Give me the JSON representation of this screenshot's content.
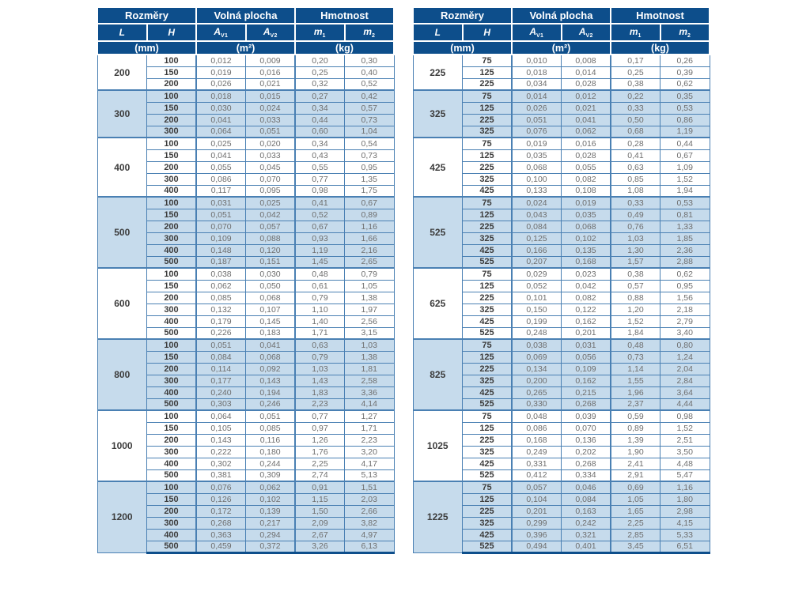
{
  "colors": {
    "header_bg": "#0d4e8b",
    "row_alt": "#c6dbec",
    "border": "#4a80b3",
    "label_text": "#3c3c3c",
    "value_text": "#6e6e6e",
    "header_text": "#ffffff"
  },
  "header": {
    "col_groups": [
      "Rozměry",
      "Volná plocha",
      "Hmotnost"
    ],
    "symbols": [
      {
        "base": "L",
        "sub": ""
      },
      {
        "base": "H",
        "sub": ""
      },
      {
        "base": "A",
        "sub": "V1"
      },
      {
        "base": "A",
        "sub": "V2"
      },
      {
        "base": "m",
        "sub": "1"
      },
      {
        "base": "m",
        "sub": "2"
      }
    ],
    "units": [
      "(mm)",
      "(m²)",
      "(kg)"
    ]
  },
  "tables": [
    {
      "groups": [
        {
          "L": "200",
          "rows": [
            [
              "100",
              "0,012",
              "0,009",
              "0,20",
              "0,30"
            ],
            [
              "150",
              "0,019",
              "0,016",
              "0,25",
              "0,40"
            ],
            [
              "200",
              "0,026",
              "0,021",
              "0,32",
              "0,52"
            ]
          ]
        },
        {
          "L": "300",
          "rows": [
            [
              "100",
              "0,018",
              "0,015",
              "0,27",
              "0,42"
            ],
            [
              "150",
              "0,030",
              "0,024",
              "0,34",
              "0,57"
            ],
            [
              "200",
              "0,041",
              "0,033",
              "0,44",
              "0,73"
            ],
            [
              "300",
              "0,064",
              "0,051",
              "0,60",
              "1,04"
            ]
          ]
        },
        {
          "L": "400",
          "rows": [
            [
              "100",
              "0,025",
              "0,020",
              "0,34",
              "0,54"
            ],
            [
              "150",
              "0,041",
              "0,033",
              "0,43",
              "0,73"
            ],
            [
              "200",
              "0,055",
              "0,045",
              "0,55",
              "0,95"
            ],
            [
              "300",
              "0,086",
              "0,070",
              "0,77",
              "1,35"
            ],
            [
              "400",
              "0,117",
              "0,095",
              "0,98",
              "1,75"
            ]
          ]
        },
        {
          "L": "500",
          "rows": [
            [
              "100",
              "0,031",
              "0,025",
              "0,41",
              "0,67"
            ],
            [
              "150",
              "0,051",
              "0,042",
              "0,52",
              "0,89"
            ],
            [
              "200",
              "0,070",
              "0,057",
              "0,67",
              "1,16"
            ],
            [
              "300",
              "0,109",
              "0,088",
              "0,93",
              "1,66"
            ],
            [
              "400",
              "0,148",
              "0,120",
              "1,19",
              "2,16"
            ],
            [
              "500",
              "0,187",
              "0,151",
              "1,45",
              "2,65"
            ]
          ]
        },
        {
          "L": "600",
          "rows": [
            [
              "100",
              "0,038",
              "0,030",
              "0,48",
              "0,79"
            ],
            [
              "150",
              "0,062",
              "0,050",
              "0,61",
              "1,05"
            ],
            [
              "200",
              "0,085",
              "0,068",
              "0,79",
              "1,38"
            ],
            [
              "300",
              "0,132",
              "0,107",
              "1,10",
              "1,97"
            ],
            [
              "400",
              "0,179",
              "0,145",
              "1,40",
              "2,56"
            ],
            [
              "500",
              "0,226",
              "0,183",
              "1,71",
              "3,15"
            ]
          ]
        },
        {
          "L": "800",
          "rows": [
            [
              "100",
              "0,051",
              "0,041",
              "0,63",
              "1,03"
            ],
            [
              "150",
              "0,084",
              "0,068",
              "0,79",
              "1,38"
            ],
            [
              "200",
              "0,114",
              "0,092",
              "1,03",
              "1,81"
            ],
            [
              "300",
              "0,177",
              "0,143",
              "1,43",
              "2,58"
            ],
            [
              "400",
              "0,240",
              "0,194",
              "1,83",
              "3,36"
            ],
            [
              "500",
              "0,303",
              "0,246",
              "2,23",
              "4,14"
            ]
          ]
        },
        {
          "L": "1000",
          "rows": [
            [
              "100",
              "0,064",
              "0,051",
              "0,77",
              "1,27"
            ],
            [
              "150",
              "0,105",
              "0,085",
              "0,97",
              "1,71"
            ],
            [
              "200",
              "0,143",
              "0,116",
              "1,26",
              "2,23"
            ],
            [
              "300",
              "0,222",
              "0,180",
              "1,76",
              "3,20"
            ],
            [
              "400",
              "0,302",
              "0,244",
              "2,25",
              "4,17"
            ],
            [
              "500",
              "0,381",
              "0,309",
              "2,74",
              "5,13"
            ]
          ]
        },
        {
          "L": "1200",
          "rows": [
            [
              "100",
              "0,076",
              "0,062",
              "0,91",
              "1,51"
            ],
            [
              "150",
              "0,126",
              "0,102",
              "1,15",
              "2,03"
            ],
            [
              "200",
              "0,172",
              "0,139",
              "1,50",
              "2,66"
            ],
            [
              "300",
              "0,268",
              "0,217",
              "2,09",
              "3,82"
            ],
            [
              "400",
              "0,363",
              "0,294",
              "2,67",
              "4,97"
            ],
            [
              "500",
              "0,459",
              "0,372",
              "3,26",
              "6,13"
            ]
          ]
        }
      ]
    },
    {
      "groups": [
        {
          "L": "225",
          "rows": [
            [
              "75",
              "0,010",
              "0,008",
              "0,17",
              "0,26"
            ],
            [
              "125",
              "0,018",
              "0,014",
              "0,25",
              "0,39"
            ],
            [
              "225",
              "0,034",
              "0,028",
              "0,38",
              "0,62"
            ]
          ]
        },
        {
          "L": "325",
          "rows": [
            [
              "75",
              "0,014",
              "0,012",
              "0,22",
              "0,35"
            ],
            [
              "125",
              "0,026",
              "0,021",
              "0,33",
              "0,53"
            ],
            [
              "225",
              "0,051",
              "0,041",
              "0,50",
              "0,86"
            ],
            [
              "325",
              "0,076",
              "0,062",
              "0,68",
              "1,19"
            ]
          ]
        },
        {
          "L": "425",
          "rows": [
            [
              "75",
              "0,019",
              "0,016",
              "0,28",
              "0,44"
            ],
            [
              "125",
              "0,035",
              "0,028",
              "0,41",
              "0,67"
            ],
            [
              "225",
              "0,068",
              "0,055",
              "0,63",
              "1,09"
            ],
            [
              "325",
              "0,100",
              "0,082",
              "0,85",
              "1,52"
            ],
            [
              "425",
              "0,133",
              "0,108",
              "1,08",
              "1,94"
            ]
          ]
        },
        {
          "L": "525",
          "rows": [
            [
              "75",
              "0,024",
              "0,019",
              "0,33",
              "0,53"
            ],
            [
              "125",
              "0,043",
              "0,035",
              "0,49",
              "0,81"
            ],
            [
              "225",
              "0,084",
              "0,068",
              "0,76",
              "1,33"
            ],
            [
              "325",
              "0,125",
              "0,102",
              "1,03",
              "1,85"
            ],
            [
              "425",
              "0,166",
              "0,135",
              "1,30",
              "2,36"
            ],
            [
              "525",
              "0,207",
              "0,168",
              "1,57",
              "2,88"
            ]
          ]
        },
        {
          "L": "625",
          "rows": [
            [
              "75",
              "0,029",
              "0,023",
              "0,38",
              "0,62"
            ],
            [
              "125",
              "0,052",
              "0,042",
              "0,57",
              "0,95"
            ],
            [
              "225",
              "0,101",
              "0,082",
              "0,88",
              "1,56"
            ],
            [
              "325",
              "0,150",
              "0,122",
              "1,20",
              "2,18"
            ],
            [
              "425",
              "0,199",
              "0,162",
              "1,52",
              "2,79"
            ],
            [
              "525",
              "0,248",
              "0,201",
              "1,84",
              "3,40"
            ]
          ]
        },
        {
          "L": "825",
          "rows": [
            [
              "75",
              "0,038",
              "0,031",
              "0,48",
              "0,80"
            ],
            [
              "125",
              "0,069",
              "0,056",
              "0,73",
              "1,24"
            ],
            [
              "225",
              "0,134",
              "0,109",
              "1,14",
              "2,04"
            ],
            [
              "325",
              "0,200",
              "0,162",
              "1,55",
              "2,84"
            ],
            [
              "425",
              "0,265",
              "0,215",
              "1,96",
              "3,64"
            ],
            [
              "525",
              "0,330",
              "0,268",
              "2,37",
              "4,44"
            ]
          ]
        },
        {
          "L": "1025",
          "rows": [
            [
              "75",
              "0,048",
              "0,039",
              "0,59",
              "0,98"
            ],
            [
              "125",
              "0,086",
              "0,070",
              "0,89",
              "1,52"
            ],
            [
              "225",
              "0,168",
              "0,136",
              "1,39",
              "2,51"
            ],
            [
              "325",
              "0,249",
              "0,202",
              "1,90",
              "3,50"
            ],
            [
              "425",
              "0,331",
              "0,268",
              "2,41",
              "4,48"
            ],
            [
              "525",
              "0,412",
              "0,334",
              "2,91",
              "5,47"
            ]
          ]
        },
        {
          "L": "1225",
          "rows": [
            [
              "75",
              "0,057",
              "0,046",
              "0,69",
              "1,16"
            ],
            [
              "125",
              "0,104",
              "0,084",
              "1,05",
              "1,80"
            ],
            [
              "225",
              "0,201",
              "0,163",
              "1,65",
              "2,98"
            ],
            [
              "325",
              "0,299",
              "0,242",
              "2,25",
              "4,15"
            ],
            [
              "425",
              "0,396",
              "0,321",
              "2,85",
              "5,33"
            ],
            [
              "525",
              "0,494",
              "0,401",
              "3,45",
              "6,51"
            ]
          ]
        }
      ]
    }
  ]
}
